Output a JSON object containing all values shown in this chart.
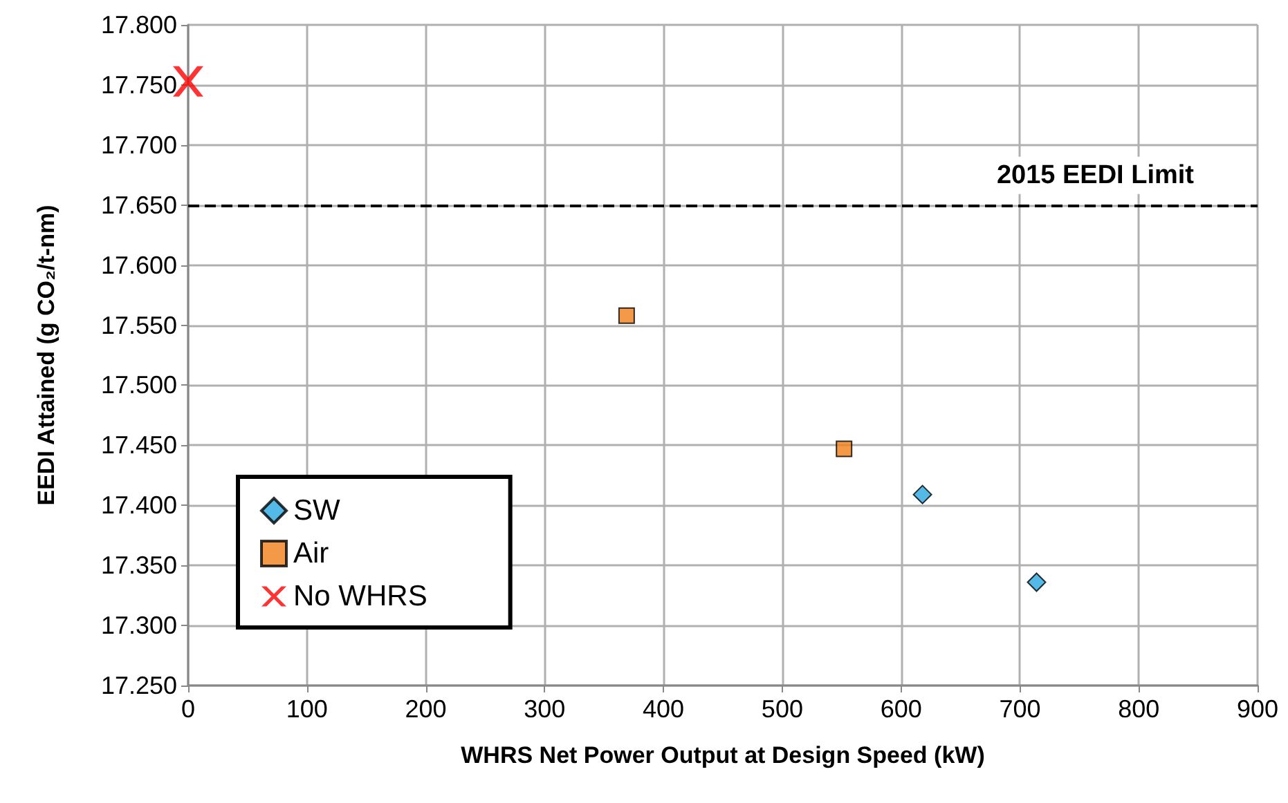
{
  "chart_data": {
    "type": "scatter",
    "xlabel": "WHRS Net Power Output at Design Speed (kW)",
    "ylabel": "EEDI Attained (g CO₂/t-nm)",
    "series": [
      {
        "name": "SW",
        "color": "#29a8e0",
        "marker": "diamond",
        "x": [
          618,
          714
        ],
        "values": [
          17.409,
          17.336
        ]
      },
      {
        "name": "Air",
        "color": "#f07f1a",
        "marker": "square",
        "x": [
          369,
          552
        ],
        "values": [
          17.558,
          17.447
        ]
      },
      {
        "name": "No WHRS",
        "color": "#ff0000",
        "marker": "cross",
        "x": [
          0
        ],
        "values": [
          17.753
        ]
      }
    ],
    "xlim": [
      0,
      900
    ],
    "xticks": [
      0,
      100,
      200,
      300,
      400,
      500,
      600,
      700,
      800,
      900
    ],
    "ylim": [
      17.25,
      17.8
    ],
    "yticks": [
      {
        "value": 17.25,
        "label": "17.250"
      },
      {
        "value": 17.3,
        "label": "17.300"
      },
      {
        "value": 17.35,
        "label": "17.350"
      },
      {
        "value": 17.4,
        "label": "17.400"
      },
      {
        "value": 17.45,
        "label": "17.450"
      },
      {
        "value": 17.5,
        "label": "17.500"
      },
      {
        "value": 17.55,
        "label": "17.550"
      },
      {
        "value": 17.6,
        "label": "17.600"
      },
      {
        "value": 17.65,
        "label": "17.650"
      },
      {
        "value": 17.7,
        "label": "17.700"
      },
      {
        "value": 17.75,
        "label": "17.750"
      },
      {
        "value": 17.8,
        "label": "17.800"
      }
    ],
    "ref_lines": [
      {
        "axis": "y",
        "value": 17.648,
        "label": "2015 EEDI Limit",
        "color": "#000000",
        "line_style": "dashed"
      }
    ],
    "grid": true,
    "legend": "bottom left"
  }
}
